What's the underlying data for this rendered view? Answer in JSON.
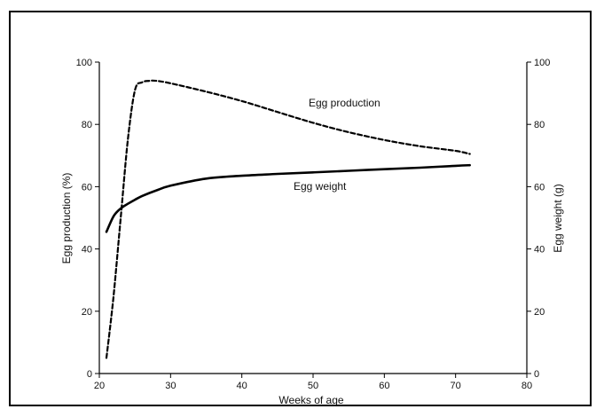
{
  "chart_data": {
    "type": "line",
    "title": "",
    "xlabel": "Weeks of age",
    "ylabel_left": "Egg production (%)",
    "ylabel_right": "Egg weight (g)",
    "xlim": [
      20,
      80
    ],
    "ylim_left": [
      0,
      100
    ],
    "ylim_right": [
      0,
      100
    ],
    "x_ticks": [
      20,
      30,
      40,
      50,
      60,
      70,
      80
    ],
    "y_ticks_left": [
      0,
      20,
      40,
      60,
      80,
      100
    ],
    "y_ticks_right": [
      0,
      20,
      40,
      60,
      80,
      100
    ],
    "grid": false,
    "legend": "inline labels",
    "series": [
      {
        "name": "Egg production",
        "axis": "left",
        "style": "dashed",
        "x": [
          21,
          22,
          23,
          24,
          25,
          26,
          27,
          28,
          30,
          35,
          40,
          45,
          50,
          55,
          60,
          65,
          70,
          72
        ],
        "y": [
          5,
          25,
          50,
          75,
          91,
          93.5,
          94,
          94,
          93.2,
          90.5,
          87.5,
          84,
          80.5,
          77.5,
          75,
          73,
          71.5,
          70.5
        ]
      },
      {
        "name": "Egg weight",
        "axis": "right",
        "style": "solid",
        "x": [
          21,
          22,
          23,
          24,
          25,
          26,
          28,
          30,
          35,
          40,
          45,
          50,
          55,
          60,
          65,
          70,
          72
        ],
        "y": [
          45.5,
          50.5,
          53,
          54.5,
          55.8,
          57,
          58.8,
          60.3,
          62.6,
          63.5,
          64.1,
          64.6,
          65.1,
          65.6,
          66.1,
          66.7,
          66.9
        ]
      }
    ],
    "annotations": [
      "Egg production",
      "Egg weight"
    ]
  }
}
